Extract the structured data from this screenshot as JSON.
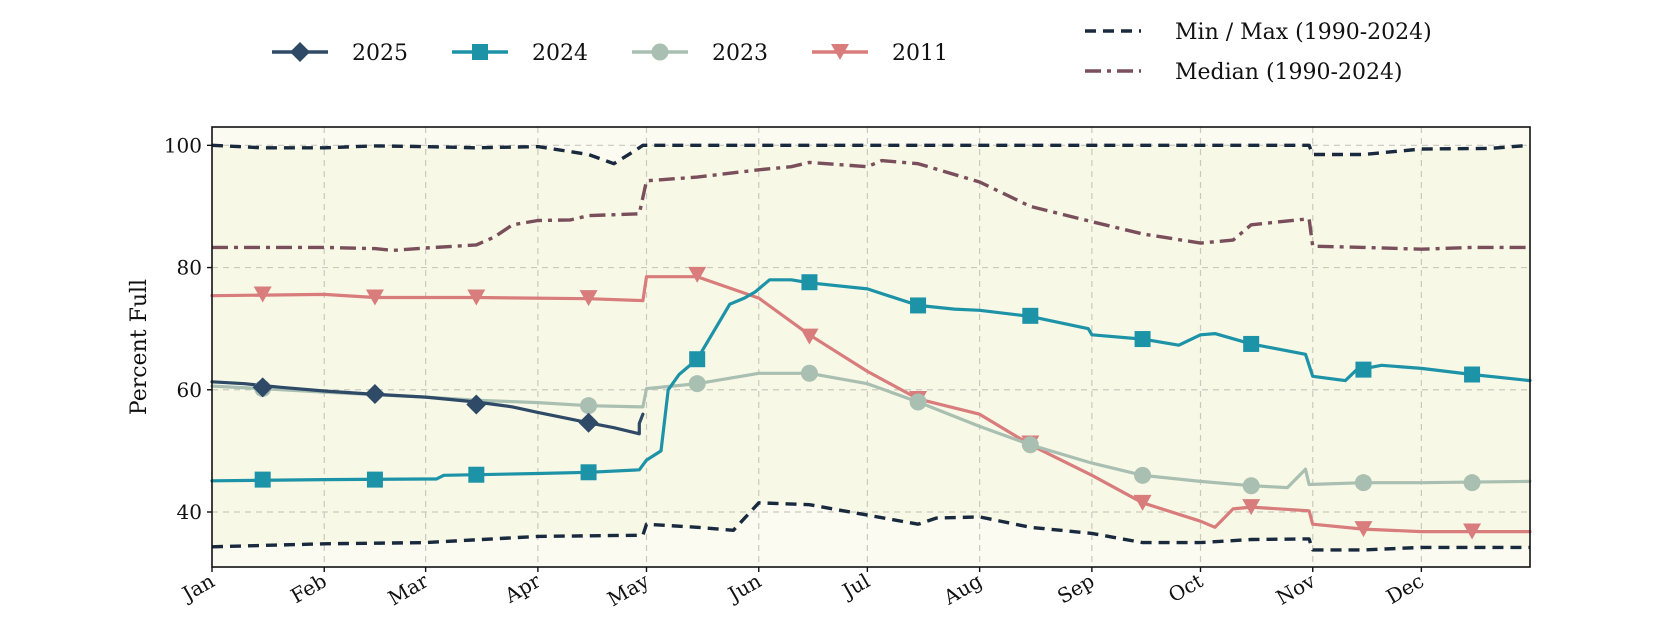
{
  "chart_data": {
    "type": "line",
    "title": "",
    "xlabel": "",
    "ylabel": "Percent Full",
    "x_tick_labels": [
      "Jan",
      "Feb",
      "Mar",
      "Apr",
      "May",
      "Jun",
      "Jul",
      "Aug",
      "Sep",
      "Oct",
      "Nov",
      "Dec"
    ],
    "y_ticks": [
      40,
      60,
      80,
      100
    ],
    "ylim": [
      31,
      103
    ],
    "xlim": [
      "Jan 1",
      "Dec 31"
    ],
    "grid": true,
    "background_fill": "#fbfbf2",
    "band_fill": "#f8f8e6",
    "legend": {
      "placement": "top",
      "entries": [
        {
          "label": "2025",
          "series": 0
        },
        {
          "label": "2024",
          "series": 1
        },
        {
          "label": "2023",
          "series": 2
        },
        {
          "label": "2011",
          "series": 3
        },
        {
          "label": "Min / Max (1990-2024)",
          "series": 4
        },
        {
          "label": "Median (1990-2024)",
          "series": 6
        }
      ]
    },
    "series": [
      {
        "name": "2025",
        "color": "#2e4a66",
        "line": "solid",
        "marker": "diamond",
        "points": [
          [
            "Jan 1",
            61.3
          ],
          [
            "Jan 10",
            61.0
          ],
          [
            "Jan 20",
            60.4
          ],
          [
            "Feb 1",
            59.8
          ],
          [
            "Feb 14",
            59.3
          ],
          [
            "Mar 1",
            58.8
          ],
          [
            "Mar 15",
            58.0
          ],
          [
            "Mar 25",
            57.2
          ],
          [
            "Apr 1",
            56.3
          ],
          [
            "Apr 10",
            55.2
          ],
          [
            "Apr 15",
            54.6
          ],
          [
            "Apr 22",
            53.8
          ],
          [
            "Apr 29",
            52.8
          ],
          [
            "Apr 29",
            54.5
          ],
          [
            "Apr 30",
            56.0
          ]
        ],
        "markers": [
          [
            "Jan 15",
            60.4
          ],
          [
            "Feb 15",
            59.3
          ],
          [
            "Mar 15",
            57.6
          ],
          [
            "Apr 15",
            54.6
          ]
        ]
      },
      {
        "name": "2024",
        "color": "#1d93a8",
        "line": "solid",
        "marker": "square",
        "points": [
          [
            "Jan 1",
            45.1
          ],
          [
            "Feb 1",
            45.3
          ],
          [
            "Mar 1",
            45.4
          ],
          [
            "Mar 4",
            45.4
          ],
          [
            "Mar 6",
            46.0
          ],
          [
            "Apr 1",
            46.3
          ],
          [
            "Apr 15",
            46.5
          ],
          [
            "Apr 29",
            46.9
          ],
          [
            "May 1",
            48.5
          ],
          [
            "May 5",
            50.0
          ],
          [
            "May 7",
            60.0
          ],
          [
            "May 10",
            62.5
          ],
          [
            "May 15",
            65.0
          ],
          [
            "May 20",
            70.0
          ],
          [
            "May 24",
            74.0
          ],
          [
            "May 28",
            75.0
          ],
          [
            "May 31",
            76.0
          ],
          [
            "Jun 4",
            78.0
          ],
          [
            "Jun 10",
            78.0
          ],
          [
            "Jun 15",
            77.5
          ],
          [
            "Jul 1",
            76.5
          ],
          [
            "Jul 15",
            73.8
          ],
          [
            "Jul 25",
            73.2
          ],
          [
            "Aug 1",
            73.0
          ],
          [
            "Aug 15",
            72.0
          ],
          [
            "Aug 31",
            70.0
          ],
          [
            "Sep 1",
            69.0
          ],
          [
            "Sep 15",
            68.3
          ],
          [
            "Sep 25",
            67.3
          ],
          [
            "Oct 1",
            69.0
          ],
          [
            "Oct 5",
            69.2
          ],
          [
            "Oct 15",
            67.5
          ],
          [
            "Oct 30",
            65.8
          ],
          [
            "Nov 1",
            62.2
          ],
          [
            "Nov 10",
            61.5
          ],
          [
            "Nov 13",
            63.2
          ],
          [
            "Nov 20",
            64.0
          ],
          [
            "Dec 1",
            63.5
          ],
          [
            "Dec 15",
            62.5
          ],
          [
            "Dec 31",
            61.5
          ]
        ],
        "markers": [
          [
            "Jan 15",
            45.3
          ],
          [
            "Feb 15",
            45.3
          ],
          [
            "Mar 15",
            46.1
          ],
          [
            "Apr 15",
            46.5
          ],
          [
            "May 15",
            65.0
          ],
          [
            "Jun 15",
            77.6
          ],
          [
            "Jul 15",
            73.8
          ],
          [
            "Aug 15",
            72.1
          ],
          [
            "Sep 15",
            68.3
          ],
          [
            "Oct 15",
            67.5
          ],
          [
            "Nov 15",
            63.3
          ],
          [
            "Dec 15",
            62.5
          ]
        ]
      },
      {
        "name": "2023",
        "color": "#a9bfb2",
        "line": "solid",
        "marker": "circle",
        "points": [
          [
            "Jan 1",
            60.6
          ],
          [
            "Jan 15",
            60.2
          ],
          [
            "Feb 1",
            59.6
          ],
          [
            "Feb 15",
            59.2
          ],
          [
            "Mar 1",
            58.8
          ],
          [
            "Mar 15",
            58.3
          ],
          [
            "Apr 1",
            57.9
          ],
          [
            "Apr 15",
            57.4
          ],
          [
            "Apr 30",
            57.2
          ],
          [
            "May 1",
            60.2
          ],
          [
            "May 15",
            61.0
          ],
          [
            "Jun 1",
            62.7
          ],
          [
            "Jun 15",
            62.7
          ],
          [
            "Jul 1",
            61.0
          ],
          [
            "Jul 15",
            58.0
          ],
          [
            "Aug 1",
            54.0
          ],
          [
            "Aug 15",
            51.0
          ],
          [
            "Sep 1",
            48.0
          ],
          [
            "Sep 15",
            46.0
          ],
          [
            "Oct 1",
            45.0
          ],
          [
            "Oct 15",
            44.3
          ],
          [
            "Oct 25",
            44.0
          ],
          [
            "Oct 30",
            47.0
          ],
          [
            "Oct 31",
            44.5
          ],
          [
            "Nov 15",
            44.8
          ],
          [
            "Dec 1",
            44.8
          ],
          [
            "Dec 31",
            45.0
          ]
        ],
        "markers": [
          [
            "Jan 15",
            60.2
          ],
          [
            "Apr 15",
            57.4
          ],
          [
            "May 15",
            61.0
          ],
          [
            "Jun 15",
            62.7
          ],
          [
            "Jul 15",
            58.0
          ],
          [
            "Aug 15",
            51.0
          ],
          [
            "Sep 15",
            46.0
          ],
          [
            "Oct 15",
            44.3
          ],
          [
            "Nov 15",
            44.8
          ],
          [
            "Dec 15",
            44.8
          ]
        ]
      },
      {
        "name": "2011",
        "color": "#d97c7c",
        "line": "solid",
        "marker": "triangle-down",
        "points": [
          [
            "Jan 1",
            75.4
          ],
          [
            "Feb 1",
            75.6
          ],
          [
            "Feb 15",
            75.1
          ],
          [
            "Mar 15",
            75.1
          ],
          [
            "Apr 15",
            74.9
          ],
          [
            "Apr 30",
            74.6
          ],
          [
            "May 1",
            78.5
          ],
          [
            "May 15",
            78.5
          ],
          [
            "Jun 1",
            75.0
          ],
          [
            "Jun 15",
            69.0
          ],
          [
            "Jul 1",
            63.0
          ],
          [
            "Jul 15",
            58.5
          ],
          [
            "Aug 1",
            56.0
          ],
          [
            "Aug 15",
            51.0
          ],
          [
            "Sep 1",
            46.0
          ],
          [
            "Sep 15",
            41.5
          ],
          [
            "Oct 1",
            38.5
          ],
          [
            "Oct 5",
            37.5
          ],
          [
            "Oct 10",
            40.5
          ],
          [
            "Oct 15",
            40.8
          ],
          [
            "Oct 31",
            40.2
          ],
          [
            "Nov 1",
            38.0
          ],
          [
            "Nov 15",
            37.2
          ],
          [
            "Dec 1",
            36.8
          ],
          [
            "Dec 31",
            36.8
          ]
        ],
        "markers": [
          [
            "Jan 15",
            75.6
          ],
          [
            "Feb 15",
            75.1
          ],
          [
            "Mar 15",
            75.1
          ],
          [
            "Apr 15",
            75.0
          ],
          [
            "May 15",
            78.8
          ],
          [
            "Jun 15",
            68.7
          ],
          [
            "Jul 15",
            58.5
          ],
          [
            "Aug 15",
            51.2
          ],
          [
            "Sep 15",
            41.5
          ],
          [
            "Oct 15",
            40.8
          ],
          [
            "Nov 15",
            37.2
          ],
          [
            "Dec 15",
            36.8
          ]
        ]
      },
      {
        "name": "Min / Max (1990-2024)",
        "color": "#1a2a3e",
        "line": "dashed",
        "marker": "none",
        "points": [
          [
            "Jan 1",
            100.0
          ],
          [
            "Jan 15",
            99.6
          ],
          [
            "Feb 1",
            99.6
          ],
          [
            "Feb 15",
            99.9
          ],
          [
            "Mar 1",
            99.8
          ],
          [
            "Mar 15",
            99.6
          ],
          [
            "Apr 1",
            99.8
          ],
          [
            "Apr 15",
            98.5
          ],
          [
            "Apr 22",
            97.0
          ],
          [
            "Apr 28",
            99.2
          ],
          [
            "Apr 30",
            100.0
          ],
          [
            "Oct 31",
            100.0
          ],
          [
            "Nov 1",
            98.5
          ],
          [
            "Nov 15",
            98.5
          ],
          [
            "Dec 1",
            99.4
          ],
          [
            "Dec 20",
            99.5
          ],
          [
            "Dec 31",
            100.0
          ]
        ]
      },
      {
        "name": "Min / Max (1990-2024)",
        "color": "#1a2a3e",
        "line": "dashed",
        "marker": "none",
        "points": [
          [
            "Jan 1",
            34.3
          ],
          [
            "Feb 1",
            34.8
          ],
          [
            "Mar 1",
            35.0
          ],
          [
            "Apr 1",
            36.0
          ],
          [
            "Apr 30",
            36.2
          ],
          [
            "May 1",
            38.0
          ],
          [
            "May 15",
            37.5
          ],
          [
            "May 25",
            37.0
          ],
          [
            "Jun 1",
            41.5
          ],
          [
            "Jun 15",
            41.2
          ],
          [
            "Jul 1",
            39.5
          ],
          [
            "Jul 15",
            38.0
          ],
          [
            "Jul 20",
            39.0
          ],
          [
            "Aug 1",
            39.2
          ],
          [
            "Aug 15",
            37.5
          ],
          [
            "Sep 1",
            36.5
          ],
          [
            "Sep 15",
            35.0
          ],
          [
            "Oct 1",
            35.0
          ],
          [
            "Oct 15",
            35.5
          ],
          [
            "Oct 31",
            35.6
          ],
          [
            "Nov 1",
            33.8
          ],
          [
            "Nov 15",
            33.8
          ],
          [
            "Dec 1",
            34.2
          ],
          [
            "Dec 31",
            34.2
          ]
        ]
      },
      {
        "name": "Median (1990-2024)",
        "color": "#7a4f5c",
        "line": "dashdot",
        "marker": "none",
        "points": [
          [
            "Jan 1",
            83.3
          ],
          [
            "Feb 1",
            83.3
          ],
          [
            "Feb 15",
            83.1
          ],
          [
            "Feb 20",
            82.8
          ],
          [
            "Mar 1",
            83.2
          ],
          [
            "Mar 15",
            83.7
          ],
          [
            "Mar 20",
            85.0
          ],
          [
            "Mar 25",
            87.0
          ],
          [
            "Apr 1",
            87.7
          ],
          [
            "Apr 10",
            87.8
          ],
          [
            "Apr 15",
            88.5
          ],
          [
            "Apr 29",
            88.8
          ],
          [
            "May 1",
            94.2
          ],
          [
            "May 15",
            94.8
          ],
          [
            "Jun 1",
            96.0
          ],
          [
            "Jun 10",
            96.5
          ],
          [
            "Jun 15",
            97.2
          ],
          [
            "Jul 1",
            96.5
          ],
          [
            "Jul 5",
            97.5
          ],
          [
            "Jul 15",
            97.0
          ],
          [
            "Aug 1",
            94.0
          ],
          [
            "Aug 15",
            90.0
          ],
          [
            "Sep 1",
            87.5
          ],
          [
            "Sep 15",
            85.5
          ],
          [
            "Oct 1",
            84.0
          ],
          [
            "Oct 10",
            84.5
          ],
          [
            "Oct 15",
            87.0
          ],
          [
            "Oct 20",
            87.3
          ],
          [
            "Oct 31",
            88.0
          ],
          [
            "Nov 1",
            83.5
          ],
          [
            "Nov 15",
            83.3
          ],
          [
            "Dec 1",
            83.0
          ],
          [
            "Dec 15",
            83.3
          ],
          [
            "Dec 31",
            83.3
          ]
        ]
      }
    ]
  }
}
